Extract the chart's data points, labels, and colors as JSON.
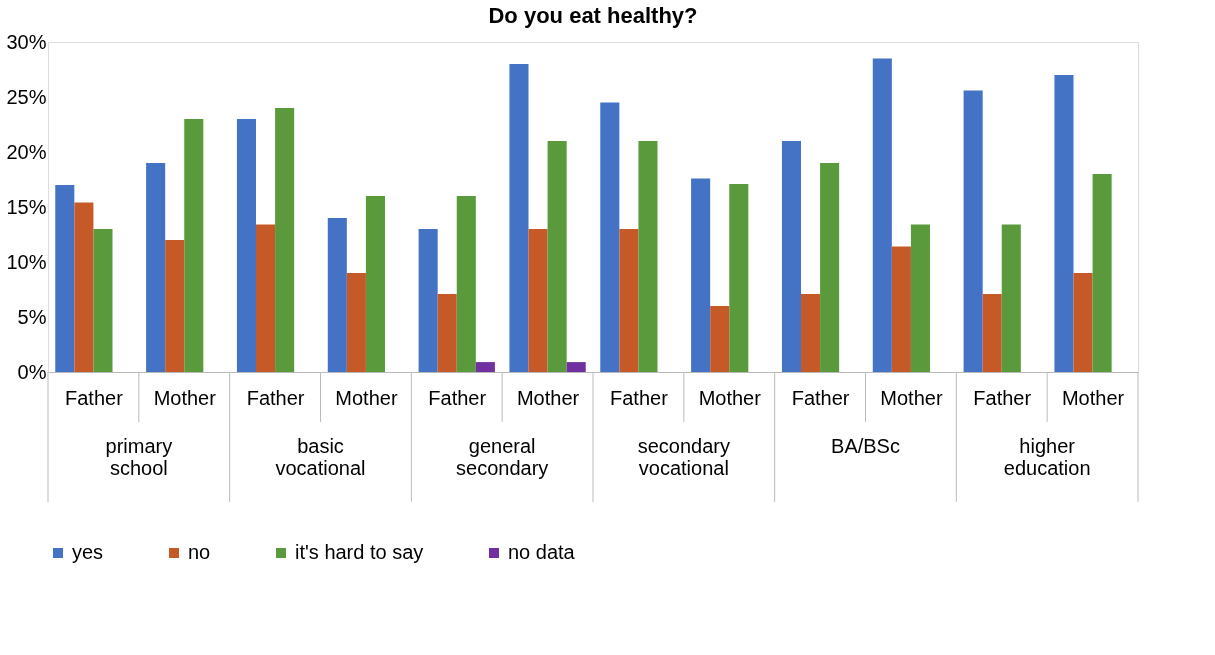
{
  "chart_data": {
    "type": "bar",
    "title": "Do you eat healthy?",
    "categories": [
      "Father",
      "Mother",
      "Father",
      "Mother",
      "Father",
      "Mother",
      "Father",
      "Mother",
      "Father",
      "Mother",
      "Father",
      "Mother"
    ],
    "annotations": [
      "primary school",
      "basic vocational",
      "general secondary",
      "secondary vocational",
      "BA/BSc",
      "higher education"
    ],
    "series": [
      {
        "name": "yes",
        "color": "#4472c4",
        "values": [
          17,
          19,
          23,
          14,
          13,
          28,
          24.5,
          17.6,
          21,
          28.5,
          25.6,
          27
        ]
      },
      {
        "name": "no",
        "color": "#c55a28",
        "values": [
          15.4,
          12,
          13.4,
          9,
          7.1,
          13,
          13,
          6,
          7.1,
          11.4,
          7.1,
          9
        ]
      },
      {
        "name": "it's hard to say",
        "color": "#5b9a3c",
        "values": [
          13,
          23,
          24,
          16,
          16,
          21,
          21,
          17.1,
          19,
          13.4,
          13.4,
          18
        ]
      },
      {
        "name": "no data",
        "color": "#7030a0",
        "values": [
          null,
          null,
          null,
          null,
          0.9,
          0.9,
          null,
          null,
          null,
          null,
          null,
          null
        ]
      }
    ],
    "ylim": [
      0,
      30
    ],
    "yticks": [
      {
        "value": 0,
        "label": "0%"
      },
      {
        "value": 5,
        "label": "5%"
      },
      {
        "value": 10,
        "label": "10%"
      },
      {
        "value": 15,
        "label": "15%"
      },
      {
        "value": 20,
        "label": "20%"
      },
      {
        "value": 25,
        "label": "25%"
      },
      {
        "value": 30,
        "label": "30%"
      }
    ],
    "grid": false,
    "legend": "bottom"
  }
}
